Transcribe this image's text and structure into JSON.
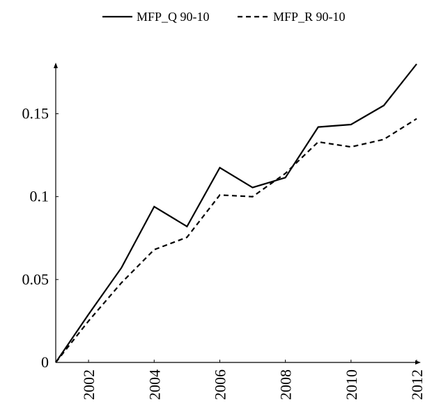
{
  "chart_data": {
    "type": "line",
    "title": "",
    "xlabel": "",
    "ylabel": "",
    "xlim": [
      2001,
      2012
    ],
    "ylim": [
      0,
      0.18
    ],
    "x_ticks": [
      2002,
      2004,
      2006,
      2008,
      2010,
      2012
    ],
    "x_tick_labels": [
      "2002",
      "2004",
      "2006",
      "2008",
      "2010",
      "2012"
    ],
    "y_ticks": [
      0,
      0.05,
      0.1,
      0.15
    ],
    "y_tick_labels": [
      "0",
      "0.05",
      "0.1",
      "0.15"
    ],
    "legend_position": "top-center",
    "grid": false,
    "x": [
      2001,
      2002,
      2003,
      2004,
      2005,
      2006,
      2007,
      2008,
      2009,
      2010,
      2011,
      2012
    ],
    "series": [
      {
        "name": "MFP_Q 90-10",
        "style": "solid",
        "values": [
          0,
          0.029,
          0.057,
          0.094,
          0.082,
          0.1175,
          0.1055,
          0.1115,
          0.142,
          0.1435,
          0.155,
          0.18
        ]
      },
      {
        "name": "MFP_R 90-10",
        "style": "dashed",
        "values": [
          0,
          0.025,
          0.048,
          0.068,
          0.0755,
          0.101,
          0.1,
          0.114,
          0.133,
          0.13,
          0.1345,
          0.147
        ]
      }
    ]
  }
}
